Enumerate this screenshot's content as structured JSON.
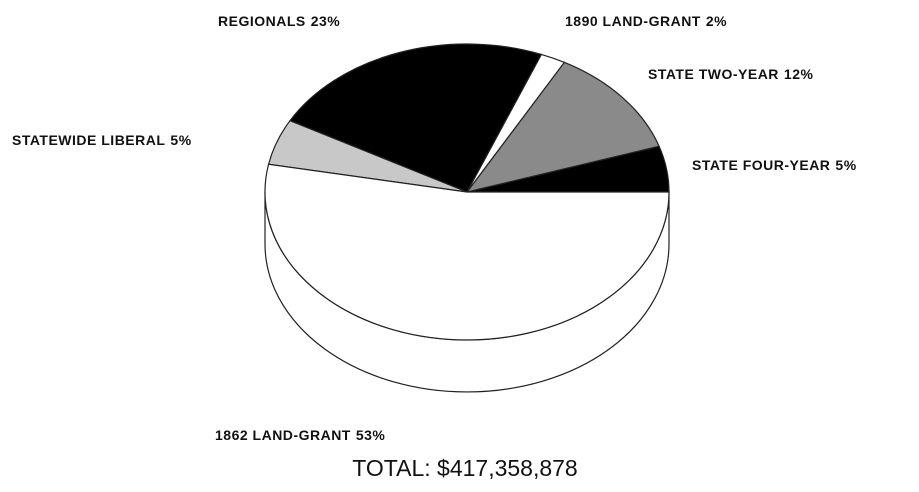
{
  "chart_data": {
    "type": "pie",
    "title": "TOTAL: $417,358,878",
    "categories": [
      "STATE FOUR-YEAR",
      "STATE TWO-YEAR",
      "1890 LAND-GRANT",
      "REGIONALS",
      "STATEWIDE LIBERAL",
      "1862 LAND-GRANT"
    ],
    "values": [
      5,
      12,
      2,
      23,
      5,
      53
    ],
    "value_labels": [
      "5%",
      "12%",
      "2%",
      "23%",
      "5%",
      "53%"
    ],
    "colors": [
      "#000000",
      "#8a8a8a",
      "#ffffff",
      "#000000",
      "#c8c8c8",
      "#ffffff"
    ]
  }
}
